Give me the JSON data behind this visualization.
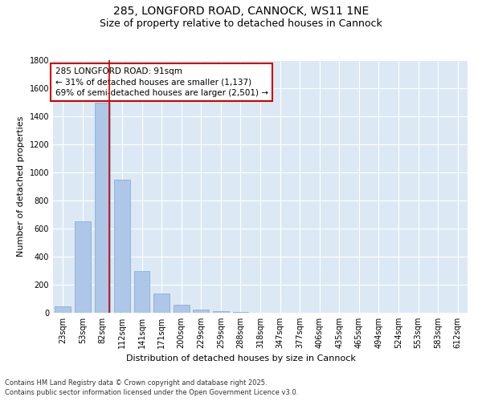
{
  "title_line1": "285, LONGFORD ROAD, CANNOCK, WS11 1NE",
  "title_line2": "Size of property relative to detached houses in Cannock",
  "xlabel": "Distribution of detached houses by size in Cannock",
  "ylabel": "Number of detached properties",
  "categories": [
    "23sqm",
    "53sqm",
    "82sqm",
    "112sqm",
    "141sqm",
    "171sqm",
    "200sqm",
    "229sqm",
    "259sqm",
    "288sqm",
    "318sqm",
    "347sqm",
    "377sqm",
    "406sqm",
    "435sqm",
    "465sqm",
    "494sqm",
    "524sqm",
    "553sqm",
    "583sqm",
    "612sqm"
  ],
  "values": [
    45,
    650,
    1500,
    950,
    295,
    140,
    60,
    22,
    10,
    5,
    2,
    1,
    0,
    1,
    0,
    0,
    0,
    0,
    0,
    0,
    0
  ],
  "bar_color": "#aec6e8",
  "bar_edge_color": "#7aaad0",
  "vline_color": "#cc0000",
  "vline_pos": 2.35,
  "annotation_text": "285 LONGFORD ROAD: 91sqm\n← 31% of detached houses are smaller (1,137)\n69% of semi-detached houses are larger (2,501) →",
  "annotation_box_color": "#ffffff",
  "annotation_box_edge": "#cc0000",
  "ylim": [
    0,
    1800
  ],
  "yticks": [
    0,
    200,
    400,
    600,
    800,
    1000,
    1200,
    1400,
    1600,
    1800
  ],
  "bg_color": "#dce9f5",
  "footer_line1": "Contains HM Land Registry data © Crown copyright and database right 2025.",
  "footer_line2": "Contains public sector information licensed under the Open Government Licence v3.0.",
  "title_fontsize": 10,
  "subtitle_fontsize": 9,
  "axis_label_fontsize": 8,
  "tick_fontsize": 7,
  "annotation_fontsize": 7.5,
  "footer_fontsize": 6
}
